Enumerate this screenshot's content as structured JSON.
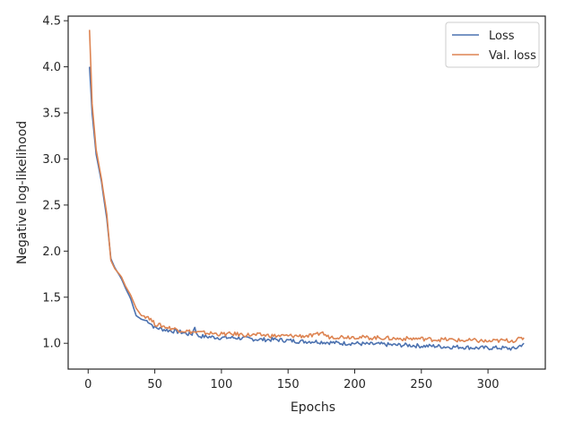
{
  "chart_data": {
    "type": "line",
    "title": "",
    "xlabel": "Epochs",
    "ylabel": "Negative log-likelihood",
    "xlim": [
      -15,
      343
    ],
    "ylim": [
      0.72,
      4.55
    ],
    "x_ticks": [
      0,
      50,
      100,
      150,
      200,
      250,
      300
    ],
    "x_tick_labels": [
      "0",
      "50",
      "100",
      "150",
      "200",
      "250",
      "300"
    ],
    "y_ticks": [
      1.0,
      1.5,
      2.0,
      2.5,
      3.0,
      3.5,
      4.0,
      4.5
    ],
    "y_tick_labels": [
      "1.0",
      "1.5",
      "2.0",
      "2.5",
      "3.0",
      "3.5",
      "4.0",
      "4.5"
    ],
    "grid": false,
    "legend_position": "top-right",
    "series": [
      {
        "name": "Loss",
        "color": "#4c72b0",
        "points": [
          [
            1,
            4.0
          ],
          [
            3,
            3.5
          ],
          [
            6,
            3.05
          ],
          [
            10,
            2.75
          ],
          [
            14,
            2.35
          ],
          [
            17,
            1.92
          ],
          [
            20,
            1.82
          ],
          [
            25,
            1.7
          ],
          [
            28,
            1.6
          ],
          [
            32,
            1.48
          ],
          [
            36,
            1.3
          ],
          [
            40,
            1.26
          ],
          [
            45,
            1.24
          ],
          [
            50,
            1.17
          ],
          [
            60,
            1.14
          ],
          [
            70,
            1.12
          ],
          [
            75,
            1.1
          ],
          [
            78,
            1.1
          ],
          [
            80,
            1.18
          ],
          [
            82,
            1.08
          ],
          [
            90,
            1.07
          ],
          [
            100,
            1.06
          ],
          [
            110,
            1.06
          ],
          [
            120,
            1.05
          ],
          [
            130,
            1.04
          ],
          [
            140,
            1.04
          ],
          [
            150,
            1.03
          ],
          [
            160,
            1.02
          ],
          [
            170,
            1.02
          ],
          [
            180,
            1.01
          ],
          [
            190,
            1.0
          ],
          [
            200,
            1.0
          ],
          [
            210,
            0.99
          ],
          [
            220,
            0.99
          ],
          [
            230,
            0.98
          ],
          [
            240,
            0.98
          ],
          [
            250,
            0.97
          ],
          [
            260,
            0.97
          ],
          [
            270,
            0.96
          ],
          [
            280,
            0.96
          ],
          [
            290,
            0.95
          ],
          [
            300,
            0.95
          ],
          [
            310,
            0.95
          ],
          [
            320,
            0.94
          ],
          [
            327,
            1.0
          ]
        ]
      },
      {
        "name": "Val. loss",
        "color": "#dd8452",
        "points": [
          [
            1,
            4.4
          ],
          [
            3,
            3.6
          ],
          [
            6,
            3.1
          ],
          [
            10,
            2.78
          ],
          [
            14,
            2.4
          ],
          [
            17,
            1.9
          ],
          [
            20,
            1.81
          ],
          [
            25,
            1.72
          ],
          [
            28,
            1.62
          ],
          [
            32,
            1.52
          ],
          [
            36,
            1.38
          ],
          [
            40,
            1.3
          ],
          [
            45,
            1.29
          ],
          [
            50,
            1.21
          ],
          [
            60,
            1.17
          ],
          [
            70,
            1.14
          ],
          [
            80,
            1.12
          ],
          [
            90,
            1.11
          ],
          [
            100,
            1.1
          ],
          [
            110,
            1.1
          ],
          [
            120,
            1.09
          ],
          [
            130,
            1.09
          ],
          [
            140,
            1.08
          ],
          [
            150,
            1.08
          ],
          [
            160,
            1.08
          ],
          [
            170,
            1.08
          ],
          [
            175,
            1.12
          ],
          [
            180,
            1.07
          ],
          [
            190,
            1.07
          ],
          [
            200,
            1.07
          ],
          [
            210,
            1.06
          ],
          [
            220,
            1.06
          ],
          [
            230,
            1.05
          ],
          [
            240,
            1.05
          ],
          [
            250,
            1.05
          ],
          [
            260,
            1.04
          ],
          [
            270,
            1.04
          ],
          [
            280,
            1.03
          ],
          [
            290,
            1.03
          ],
          [
            300,
            1.02
          ],
          [
            310,
            1.03
          ],
          [
            320,
            1.03
          ],
          [
            327,
            1.06
          ]
        ]
      }
    ]
  }
}
